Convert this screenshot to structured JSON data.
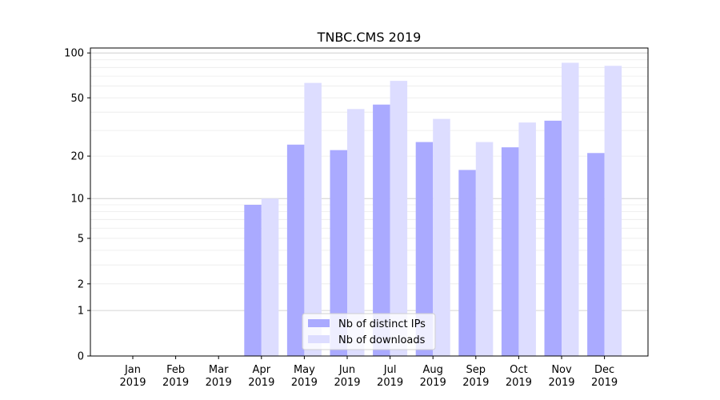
{
  "chart_data": {
    "type": "bar",
    "title": "TNBC.CMS 2019",
    "xlabel": "",
    "ylabel": "",
    "yscale": "log(1+y)",
    "ylim": [
      0,
      110
    ],
    "yticks": [
      0,
      1,
      2,
      5,
      10,
      20,
      50,
      100
    ],
    "grid": "horizontal, major and minor",
    "legend": "bottom-center",
    "categories": [
      "Jan\n2019",
      "Feb\n2019",
      "Mar\n2019",
      "Apr\n2019",
      "May\n2019",
      "Jun\n2019",
      "Jul\n2019",
      "Aug\n2019",
      "Sep\n2019",
      "Oct\n2019",
      "Nov\n2019",
      "Dec\n2019"
    ],
    "series": [
      {
        "name": "Nb of distinct IPs",
        "color": "#aaaaff",
        "values": [
          0,
          0,
          0,
          9,
          24,
          22,
          45,
          25,
          16,
          23,
          35,
          21
        ]
      },
      {
        "name": "Nb of downloads",
        "color": "#ddddff",
        "values": [
          0,
          0,
          0,
          10,
          63,
          42,
          65,
          36,
          25,
          34,
          86,
          82
        ]
      }
    ]
  }
}
